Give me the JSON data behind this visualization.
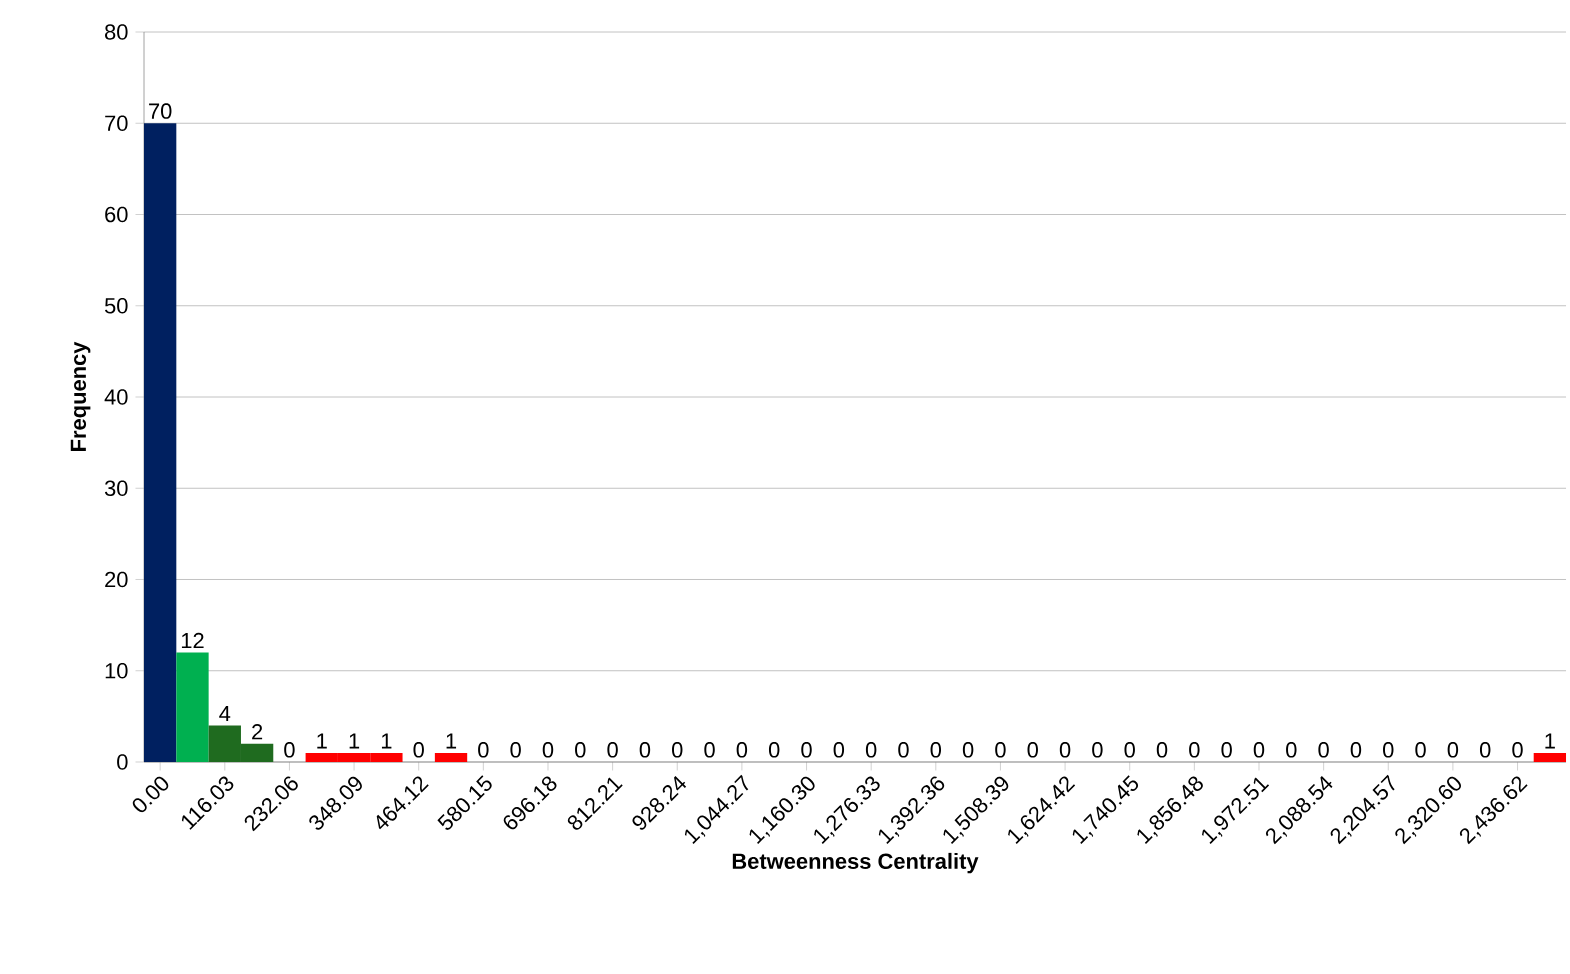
{
  "chart_data": {
    "type": "bar",
    "xlabel": "Betweenness Centrality",
    "ylabel": "Frequency",
    "categories": [
      "0.00",
      null,
      "116.03",
      null,
      "232.06",
      null,
      "348.09",
      null,
      "464.12",
      null,
      "580.15",
      null,
      "696.18",
      null,
      "812.21",
      null,
      "928.24",
      null,
      "1,044.27",
      null,
      "1,160.30",
      null,
      "1,276.33",
      null,
      "1,392.36",
      null,
      "1,508.39",
      null,
      "1,624.42",
      null,
      "1,740.45",
      null,
      "1,856.48",
      null,
      "1,972.51",
      null,
      "2,088.54",
      null,
      "2,204.57",
      null,
      "2,320.60",
      null,
      "2,436.62",
      null
    ],
    "values": [
      70,
      12,
      4,
      2,
      0,
      1,
      1,
      1,
      0,
      1,
      0,
      0,
      0,
      0,
      0,
      0,
      0,
      0,
      0,
      0,
      0,
      0,
      0,
      0,
      0,
      0,
      0,
      0,
      0,
      0,
      0,
      0,
      0,
      0,
      0,
      0,
      0,
      0,
      0,
      0,
      0,
      0,
      0,
      1
    ],
    "colors": [
      "#002060",
      "#00b050",
      "#1f6b1f",
      "#1f6b1f",
      "#ff0000",
      "#ff0000",
      "#ff0000",
      "#ff0000",
      "#ff0000",
      "#ff0000",
      "#ff0000",
      "#ff0000",
      "#ff0000",
      "#ff0000",
      "#ff0000",
      "#ff0000",
      "#ff0000",
      "#ff0000",
      "#ff0000",
      "#ff0000",
      "#ff0000",
      "#ff0000",
      "#ff0000",
      "#ff0000",
      "#ff0000",
      "#ff0000",
      "#ff0000",
      "#ff0000",
      "#ff0000",
      "#ff0000",
      "#ff0000",
      "#ff0000",
      "#ff0000",
      "#ff0000",
      "#ff0000",
      "#ff0000",
      "#ff0000",
      "#ff0000",
      "#ff0000",
      "#ff0000",
      "#ff0000",
      "#ff0000",
      "#ff0000",
      "#ff0000"
    ],
    "ylim": [
      0,
      80
    ],
    "yticks": [
      0,
      10,
      20,
      30,
      40,
      50,
      60,
      70,
      80
    ],
    "grid": "y",
    "data_labels": true
  }
}
